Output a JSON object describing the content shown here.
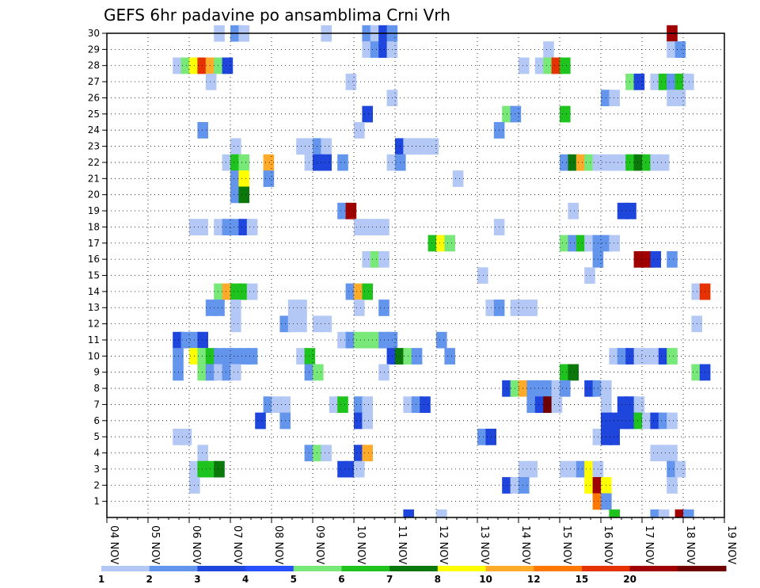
{
  "chart_data": {
    "type": "heatmap",
    "title": "GEFS 6hr padavine po ansamblima Crni Vrh",
    "y_tick_labels": [
      "1",
      "2",
      "3",
      "4",
      "5",
      "6",
      "7",
      "8",
      "9",
      "10",
      "11",
      "12",
      "13",
      "14",
      "15",
      "16",
      "17",
      "18",
      "19",
      "20",
      "21",
      "22",
      "23",
      "24",
      "25",
      "26",
      "27",
      "28",
      "29",
      "30"
    ],
    "x_tick_labels": [
      "04 NOV",
      "05 NOV",
      "06 NOV",
      "07 NOV",
      "08 NOV",
      "09 NOV",
      "10 NOV",
      "11 NOV",
      "12 NOV",
      "13 NOV",
      "14 NOV",
      "15 NOV",
      "16 NOV",
      "17 NOV",
      "18 NOV",
      "19 NOV"
    ],
    "x_range_days": [
      0,
      15
    ],
    "y_range": [
      0,
      30
    ],
    "grid": true,
    "colorbar": {
      "levels": [
        "1",
        "2",
        "3",
        "4",
        "5",
        "6",
        "7",
        "8",
        "10",
        "12",
        "15",
        "20"
      ],
      "colors": [
        "#b4c8f5",
        "#6495ed",
        "#1e46dc",
        "#2850ff",
        "#78e878",
        "#1ec31e",
        "#0a780a",
        "#ffff00",
        "#ffaa28",
        "#ff7800",
        "#e63200",
        "#a00000",
        "#6e0000"
      ]
    },
    "cells": [
      [
        30,
        2.6,
        0
      ],
      [
        30,
        3.0,
        1
      ],
      [
        30,
        3.2,
        0
      ],
      [
        30,
        5.2,
        0
      ],
      [
        30,
        6.2,
        1
      ],
      [
        30,
        6.4,
        0
      ],
      [
        30,
        6.6,
        2
      ],
      [
        30,
        6.8,
        1
      ],
      [
        30,
        13.6,
        11
      ],
      [
        29,
        6.2,
        0
      ],
      [
        29,
        6.4,
        1
      ],
      [
        29,
        6.6,
        2
      ],
      [
        29,
        6.8,
        0
      ],
      [
        29,
        10.6,
        0
      ],
      [
        29,
        13.6,
        0
      ],
      [
        29,
        13.8,
        1
      ],
      [
        28,
        1.6,
        0
      ],
      [
        28,
        1.8,
        4
      ],
      [
        28,
        2.0,
        7
      ],
      [
        28,
        2.2,
        10
      ],
      [
        28,
        2.4,
        8
      ],
      [
        28,
        2.6,
        4
      ],
      [
        28,
        2.8,
        2
      ],
      [
        28,
        10.0,
        0
      ],
      [
        28,
        10.4,
        0
      ],
      [
        28,
        10.6,
        4
      ],
      [
        28,
        10.8,
        10
      ],
      [
        28,
        11.0,
        5
      ],
      [
        27,
        2.4,
        0
      ],
      [
        27,
        5.8,
        0
      ],
      [
        27,
        12.6,
        4
      ],
      [
        27,
        12.8,
        2
      ],
      [
        27,
        13.2,
        0
      ],
      [
        27,
        13.4,
        5
      ],
      [
        27,
        13.6,
        1
      ],
      [
        27,
        13.8,
        5
      ],
      [
        27,
        14.0,
        0
      ],
      [
        26,
        6.8,
        0
      ],
      [
        26,
        12.0,
        1
      ],
      [
        26,
        12.2,
        0
      ],
      [
        26,
        13.6,
        0
      ],
      [
        26,
        13.8,
        0
      ],
      [
        25,
        6.2,
        2
      ],
      [
        25,
        9.6,
        4
      ],
      [
        25,
        9.8,
        1
      ],
      [
        25,
        11.0,
        5
      ],
      [
        24,
        2.2,
        1
      ],
      [
        24,
        6.0,
        0
      ],
      [
        24,
        9.4,
        1
      ],
      [
        23,
        3.0,
        0
      ],
      [
        23,
        4.6,
        0
      ],
      [
        23,
        4.8,
        0
      ],
      [
        23,
        5.0,
        1
      ],
      [
        23,
        5.2,
        0
      ],
      [
        23,
        7.0,
        2
      ],
      [
        23,
        7.2,
        0
      ],
      [
        23,
        7.4,
        0
      ],
      [
        23,
        7.6,
        0
      ],
      [
        23,
        7.8,
        0
      ],
      [
        22,
        2.8,
        0
      ],
      [
        22,
        3.0,
        5
      ],
      [
        22,
        3.2,
        4
      ],
      [
        22,
        3.8,
        8
      ],
      [
        22,
        4.8,
        0
      ],
      [
        22,
        5.0,
        2
      ],
      [
        22,
        5.2,
        2
      ],
      [
        22,
        5.6,
        1
      ],
      [
        22,
        6.8,
        0
      ],
      [
        22,
        7.0,
        1
      ],
      [
        22,
        11.0,
        1
      ],
      [
        22,
        11.2,
        6
      ],
      [
        22,
        11.4,
        8
      ],
      [
        22,
        11.6,
        4
      ],
      [
        22,
        11.8,
        0
      ],
      [
        22,
        12.0,
        0
      ],
      [
        22,
        12.2,
        0
      ],
      [
        22,
        12.4,
        0
      ],
      [
        22,
        12.6,
        5
      ],
      [
        22,
        12.8,
        6
      ],
      [
        22,
        13.0,
        5
      ],
      [
        22,
        13.2,
        0
      ],
      [
        22,
        13.4,
        0
      ],
      [
        21,
        3.0,
        1
      ],
      [
        21,
        3.2,
        7
      ],
      [
        21,
        3.8,
        1
      ],
      [
        21,
        8.4,
        0
      ],
      [
        20,
        3.0,
        1
      ],
      [
        20,
        3.2,
        6
      ],
      [
        19,
        5.6,
        1
      ],
      [
        19,
        5.8,
        11
      ],
      [
        19,
        11.2,
        0
      ],
      [
        19,
        12.4,
        2
      ],
      [
        19,
        12.6,
        2
      ],
      [
        18,
        2.0,
        0
      ],
      [
        18,
        2.2,
        0
      ],
      [
        18,
        2.6,
        0
      ],
      [
        18,
        2.8,
        1
      ],
      [
        18,
        3.0,
        1
      ],
      [
        18,
        3.2,
        2
      ],
      [
        18,
        3.4,
        0
      ],
      [
        18,
        6.0,
        0
      ],
      [
        18,
        6.2,
        0
      ],
      [
        18,
        6.4,
        0
      ],
      [
        18,
        6.6,
        0
      ],
      [
        18,
        9.4,
        0
      ],
      [
        17,
        7.8,
        5
      ],
      [
        17,
        8.0,
        7
      ],
      [
        17,
        8.2,
        4
      ],
      [
        17,
        11.0,
        4
      ],
      [
        17,
        11.2,
        1
      ],
      [
        17,
        11.4,
        5
      ],
      [
        17,
        11.6,
        0
      ],
      [
        17,
        11.8,
        1
      ],
      [
        17,
        12.0,
        1
      ],
      [
        17,
        12.2,
        0
      ],
      [
        16,
        6.2,
        0
      ],
      [
        16,
        6.4,
        4
      ],
      [
        16,
        6.6,
        0
      ],
      [
        16,
        11.8,
        1
      ],
      [
        16,
        12.8,
        11
      ],
      [
        16,
        13.0,
        11
      ],
      [
        16,
        13.2,
        2
      ],
      [
        16,
        13.6,
        1
      ],
      [
        15,
        9.0,
        0
      ],
      [
        15,
        11.6,
        0
      ],
      [
        14,
        2.6,
        4
      ],
      [
        14,
        2.8,
        8
      ],
      [
        14,
        3.0,
        5
      ],
      [
        14,
        3.2,
        5
      ],
      [
        14,
        3.4,
        0
      ],
      [
        14,
        5.8,
        1
      ],
      [
        14,
        6.0,
        8
      ],
      [
        14,
        6.2,
        5
      ],
      [
        14,
        14.2,
        0
      ],
      [
        14,
        14.4,
        10
      ],
      [
        13,
        2.4,
        1
      ],
      [
        13,
        2.6,
        1
      ],
      [
        13,
        3.0,
        0
      ],
      [
        13,
        4.4,
        0
      ],
      [
        13,
        4.6,
        0
      ],
      [
        13,
        6.0,
        0
      ],
      [
        13,
        6.6,
        1
      ],
      [
        13,
        9.2,
        0
      ],
      [
        13,
        9.4,
        1
      ],
      [
        13,
        9.8,
        0
      ],
      [
        13,
        10.0,
        0
      ],
      [
        13,
        10.2,
        0
      ],
      [
        12,
        3.0,
        0
      ],
      [
        12,
        4.2,
        1
      ],
      [
        12,
        4.4,
        0
      ],
      [
        12,
        4.6,
        0
      ],
      [
        12,
        5.0,
        0
      ],
      [
        12,
        5.2,
        0
      ],
      [
        12,
        14.2,
        0
      ],
      [
        11,
        1.6,
        2
      ],
      [
        11,
        1.8,
        1
      ],
      [
        11,
        2.0,
        1
      ],
      [
        11,
        2.2,
        2
      ],
      [
        11,
        5.6,
        0
      ],
      [
        11,
        5.8,
        1
      ],
      [
        11,
        6.0,
        4
      ],
      [
        11,
        6.2,
        4
      ],
      [
        11,
        6.4,
        4
      ],
      [
        11,
        6.6,
        1
      ],
      [
        11,
        6.8,
        1
      ],
      [
        11,
        8.0,
        1
      ],
      [
        10,
        1.6,
        1
      ],
      [
        10,
        2.0,
        7
      ],
      [
        10,
        2.2,
        4
      ],
      [
        10,
        2.4,
        5
      ],
      [
        10,
        2.6,
        1
      ],
      [
        10,
        2.8,
        1
      ],
      [
        10,
        3.0,
        1
      ],
      [
        10,
        3.2,
        1
      ],
      [
        10,
        3.4,
        1
      ],
      [
        10,
        4.6,
        0
      ],
      [
        10,
        4.8,
        5
      ],
      [
        10,
        6.8,
        2
      ],
      [
        10,
        7.0,
        6
      ],
      [
        10,
        7.2,
        4
      ],
      [
        10,
        7.4,
        1
      ],
      [
        10,
        8.2,
        1
      ],
      [
        10,
        12.2,
        0
      ],
      [
        10,
        12.4,
        1
      ],
      [
        10,
        12.6,
        2
      ],
      [
        10,
        12.8,
        0
      ],
      [
        10,
        13.0,
        0
      ],
      [
        10,
        13.2,
        0
      ],
      [
        10,
        13.4,
        2
      ],
      [
        10,
        13.6,
        4
      ],
      [
        9,
        1.6,
        1
      ],
      [
        9,
        2.2,
        4
      ],
      [
        9,
        2.4,
        1
      ],
      [
        9,
        2.6,
        0
      ],
      [
        9,
        2.8,
        1
      ],
      [
        9,
        3.0,
        0
      ],
      [
        9,
        4.8,
        1
      ],
      [
        9,
        5.0,
        4
      ],
      [
        9,
        6.6,
        0
      ],
      [
        9,
        11.0,
        5
      ],
      [
        9,
        11.2,
        6
      ],
      [
        9,
        14.2,
        4
      ],
      [
        9,
        14.4,
        2
      ],
      [
        8,
        9.6,
        2
      ],
      [
        8,
        9.8,
        4
      ],
      [
        8,
        10.0,
        8
      ],
      [
        8,
        10.2,
        1
      ],
      [
        8,
        10.4,
        1
      ],
      [
        8,
        10.6,
        1
      ],
      [
        8,
        10.8,
        0
      ],
      [
        8,
        11.0,
        1
      ],
      [
        8,
        11.6,
        2
      ],
      [
        8,
        11.8,
        1
      ],
      [
        8,
        12.0,
        0
      ],
      [
        7,
        3.8,
        1
      ],
      [
        7,
        4.0,
        0
      ],
      [
        7,
        4.2,
        0
      ],
      [
        7,
        5.4,
        0
      ],
      [
        7,
        5.6,
        5
      ],
      [
        7,
        6.0,
        1
      ],
      [
        7,
        6.2,
        0
      ],
      [
        7,
        7.2,
        0
      ],
      [
        7,
        7.4,
        1
      ],
      [
        7,
        7.6,
        2
      ],
      [
        7,
        10.2,
        1
      ],
      [
        7,
        10.4,
        2
      ],
      [
        7,
        10.6,
        12
      ],
      [
        7,
        10.8,
        0
      ],
      [
        7,
        12.0,
        0
      ],
      [
        7,
        12.4,
        2
      ],
      [
        7,
        12.6,
        2
      ],
      [
        7,
        12.8,
        0
      ],
      [
        6,
        3.6,
        2
      ],
      [
        6,
        4.2,
        1
      ],
      [
        6,
        6.0,
        2
      ],
      [
        6,
        6.2,
        0
      ],
      [
        6,
        12.0,
        2
      ],
      [
        6,
        12.2,
        2
      ],
      [
        6,
        12.4,
        2
      ],
      [
        6,
        12.6,
        2
      ],
      [
        6,
        12.8,
        5
      ],
      [
        6,
        13.0,
        0
      ],
      [
        6,
        13.2,
        2
      ],
      [
        6,
        13.4,
        1
      ],
      [
        6,
        13.6,
        0
      ],
      [
        5,
        1.6,
        0
      ],
      [
        5,
        1.8,
        0
      ],
      [
        5,
        9.0,
        1
      ],
      [
        5,
        9.2,
        2
      ],
      [
        5,
        11.8,
        0
      ],
      [
        5,
        12.0,
        2
      ],
      [
        5,
        12.2,
        2
      ],
      [
        4,
        2.2,
        0
      ],
      [
        4,
        4.8,
        1
      ],
      [
        4,
        5.0,
        4
      ],
      [
        4,
        5.2,
        0
      ],
      [
        4,
        6.0,
        2
      ],
      [
        4,
        6.2,
        8
      ],
      [
        4,
        13.2,
        0
      ],
      [
        4,
        13.4,
        0
      ],
      [
        4,
        13.6,
        0
      ],
      [
        3,
        2.0,
        0
      ],
      [
        3,
        2.2,
        5
      ],
      [
        3,
        2.4,
        5
      ],
      [
        3,
        2.6,
        6
      ],
      [
        3,
        5.6,
        2
      ],
      [
        3,
        5.8,
        2
      ],
      [
        3,
        6.0,
        0
      ],
      [
        3,
        10.0,
        0
      ],
      [
        3,
        10.2,
        0
      ],
      [
        3,
        11.0,
        0
      ],
      [
        3,
        11.2,
        0
      ],
      [
        3,
        11.4,
        1
      ],
      [
        3,
        11.6,
        7
      ],
      [
        3,
        11.8,
        0
      ],
      [
        3,
        13.6,
        1
      ],
      [
        3,
        13.8,
        0
      ],
      [
        2,
        2.0,
        0
      ],
      [
        2,
        9.6,
        2
      ],
      [
        2,
        9.8,
        0
      ],
      [
        2,
        10.0,
        1
      ],
      [
        2,
        11.6,
        7
      ],
      [
        2,
        11.8,
        11
      ],
      [
        2,
        12.0,
        7
      ],
      [
        2,
        13.6,
        0
      ],
      [
        1,
        11.8,
        9
      ],
      [
        1,
        12.0,
        1
      ]
    ],
    "edge_cells": [
      [
        7.2,
        2
      ],
      [
        8.0,
        0
      ],
      [
        12.2,
        5
      ],
      [
        13.2,
        1
      ],
      [
        13.4,
        0
      ],
      [
        13.8,
        11
      ],
      [
        14.0,
        1
      ]
    ]
  }
}
